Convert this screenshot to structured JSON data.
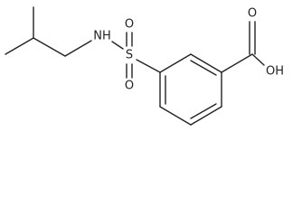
{
  "atoms": [
    {
      "label": "NH"
    },
    {
      "label": "S"
    },
    {
      "label": "O"
    },
    {
      "label": "O"
    },
    {
      "label": "O"
    },
    {
      "label": "OH"
    }
  ]
}
